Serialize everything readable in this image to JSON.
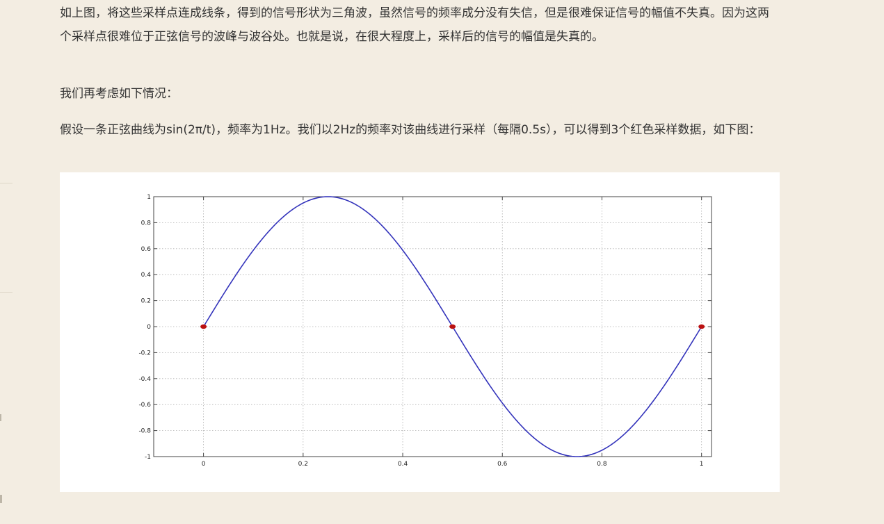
{
  "article": {
    "paragraph1": "如上图，将这些采样点连成线条，得到的信号形状为三角波，虽然信号的频率成分没有失信，但是很难保证信号的幅值不失真。因为这两个采样点很难位于正弦信号的波峰与波谷处。也就是说，在很大程度上，采样后的信号的幅值是失真的。",
    "paragraph2": "我们再考虑如下情况：",
    "paragraph3": "假设一条正弦曲线为sin(2π/t)，频率为1Hz。我们以2Hz的频率对该曲线进行采样（每隔0.5s），可以得到3个红色采样数据，如下图："
  },
  "colors": {
    "background": "#f3ede2",
    "text": "#333333",
    "curve": "#3333bb",
    "sample_points": "#bb1111"
  },
  "chart_data": {
    "type": "line",
    "title": "",
    "xlabel": "",
    "ylabel": "",
    "xlim": [
      -0.1,
      1.02
    ],
    "ylim": [
      -1,
      1
    ],
    "grid": true,
    "x_ticks": [
      0,
      0.2,
      0.4,
      0.6,
      0.8,
      1
    ],
    "x_tick_labels": [
      "0",
      "0.2",
      "0.4",
      "0.6",
      "0.8",
      "1"
    ],
    "y_ticks": [
      1,
      0.8,
      0.6,
      0.4,
      0.2,
      0,
      -0.2,
      -0.4,
      -0.6,
      -0.8,
      -1
    ],
    "y_tick_labels": [
      "1",
      "0.8",
      "0.6",
      "0.4",
      "0.2",
      "0",
      "-0.2",
      "-0.4",
      "-0.6",
      "-0.8",
      "-1"
    ],
    "series": [
      {
        "kind": "line",
        "x": [
          0,
          0.05,
          0.1,
          0.15,
          0.2,
          0.25,
          0.3,
          0.35,
          0.4,
          0.45,
          0.5,
          0.55,
          0.6,
          0.65,
          0.7,
          0.75,
          0.8,
          0.85,
          0.9,
          0.95,
          1.0
        ],
        "y": [
          0,
          0.309,
          0.588,
          0.809,
          0.951,
          1.0,
          0.951,
          0.809,
          0.588,
          0.309,
          0,
          -0.309,
          -0.588,
          -0.809,
          -0.951,
          -1.0,
          -0.951,
          -0.809,
          -0.588,
          -0.309,
          0
        ]
      },
      {
        "kind": "scatter",
        "x": [
          0,
          0.5,
          1
        ],
        "y": [
          0,
          0,
          0
        ]
      }
    ]
  }
}
